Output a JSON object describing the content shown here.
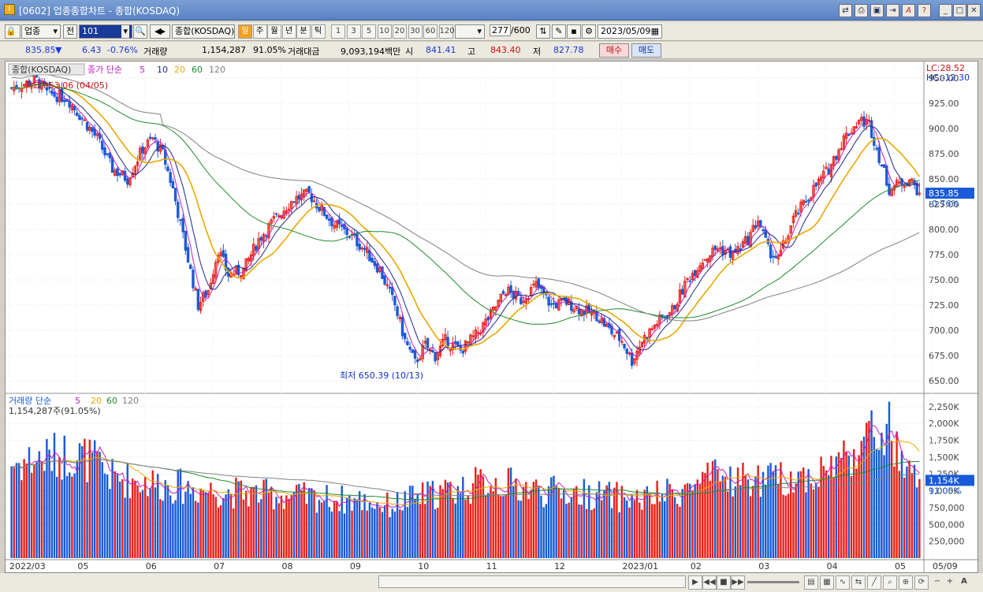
{
  "window": {
    "title": "[0602] 업종종합차트 - 종합(KOSDAQ)",
    "app_icon": "I"
  },
  "toolbar": {
    "market": "업종",
    "prev_label": "전",
    "code": "101",
    "name": "종합(KOSDAQ)",
    "periods": [
      "일",
      "주",
      "월",
      "년",
      "분",
      "틱"
    ],
    "active_period": "일",
    "minutes": [
      "1",
      "3",
      "5",
      "10",
      "20",
      "30",
      "60",
      "120"
    ],
    "count": "277",
    "count_max": "/600",
    "date": "2023/05/09"
  },
  "quote": {
    "price": "835.85",
    "arrow": "▼",
    "change": "6.43",
    "change_pct": "-0.76%",
    "volume_label": "거래량",
    "volume": "1,154,287",
    "volume_pct": "91.05%",
    "amount_label": "거래대금",
    "amount": "9,093,194백만",
    "open_label": "시",
    "open": "841.41",
    "high_label": "고",
    "high": "843.40",
    "low_label": "저",
    "low": "827.78",
    "buy_label": "매수",
    "sell_label": "매도"
  },
  "price_pane": {
    "legend_name": "종합(KOSDAQ)",
    "legend_ma_label": "종가 단순",
    "legend_ma": [
      "5",
      "10",
      "20",
      "60",
      "120"
    ],
    "lc": "LC:28.52",
    "hc": "HC:-12.30",
    "high_note": "최고 953.06 (04/05)",
    "low_note": "최저 650.39 (10/13)",
    "current_price": "835.85",
    "current_pct": "-0.76%",
    "y_ticks": [
      "950.00",
      "925.00",
      "900.00",
      "875.00",
      "850.00",
      "825.00",
      "800.00",
      "775.00",
      "750.00",
      "725.00",
      "700.00",
      "675.00",
      "650.00"
    ]
  },
  "volume_pane": {
    "legend_label": "거래량 단순",
    "legend_ma": [
      "5",
      "20",
      "60",
      "120"
    ],
    "sub_label": "1,154,287주(91.05%)",
    "current": "1,154K",
    "current_pct": "91.05%",
    "y_ticks": [
      "2,250K",
      "2,000K",
      "1,750K",
      "1,500K",
      "1,250K",
      "1,000K",
      "750,000",
      "500,000",
      "250,000"
    ]
  },
  "x_axis": [
    "2022/03",
    "05",
    "06",
    "07",
    "08",
    "09",
    "10",
    "11",
    "12",
    "2023/01",
    "02",
    "03",
    "04",
    "05",
    "05/09"
  ],
  "colors": {
    "up": "#e8201a",
    "down": "#1a5ad8",
    "ma5": "#c020c0",
    "ma10": "#1a2a8a",
    "ma20": "#e8a800",
    "ma60": "#208a30",
    "ma120": "#808080"
  },
  "chart_data": {
    "type": "candlestick",
    "ylim": [
      640,
      960
    ],
    "volume_ylim": [
      0,
      2400000
    ],
    "anchors": [
      [
        0,
        940
      ],
      [
        10,
        948
      ],
      [
        14,
        935
      ],
      [
        22,
        930
      ],
      [
        28,
        910
      ],
      [
        34,
        890
      ],
      [
        40,
        860
      ],
      [
        46,
        850
      ],
      [
        52,
        880
      ],
      [
        56,
        890
      ],
      [
        60,
        875
      ],
      [
        64,
        840
      ],
      [
        70,
        770
      ],
      [
        74,
        725
      ],
      [
        78,
        740
      ],
      [
        82,
        780
      ],
      [
        86,
        755
      ],
      [
        92,
        760
      ],
      [
        98,
        790
      ],
      [
        106,
        815
      ],
      [
        112,
        830
      ],
      [
        118,
        835
      ],
      [
        122,
        822
      ],
      [
        128,
        805
      ],
      [
        134,
        795
      ],
      [
        140,
        780
      ],
      [
        146,
        760
      ],
      [
        152,
        725
      ],
      [
        156,
        690
      ],
      [
        160,
        668
      ],
      [
        164,
        685
      ],
      [
        168,
        675
      ],
      [
        172,
        690
      ],
      [
        178,
        680
      ],
      [
        184,
        695
      ],
      [
        190,
        715
      ],
      [
        196,
        740
      ],
      [
        202,
        730
      ],
      [
        208,
        745
      ],
      [
        214,
        725
      ],
      [
        220,
        728
      ],
      [
        226,
        720
      ],
      [
        232,
        715
      ],
      [
        238,
        698
      ],
      [
        242,
        690
      ],
      [
        246,
        670
      ],
      [
        250,
        690
      ],
      [
        256,
        708
      ],
      [
        262,
        720
      ],
      [
        268,
        750
      ],
      [
        274,
        770
      ],
      [
        280,
        782
      ],
      [
        286,
        775
      ],
      [
        292,
        790
      ],
      [
        296,
        810
      ],
      [
        300,
        780
      ],
      [
        304,
        770
      ],
      [
        310,
        810
      ],
      [
        314,
        825
      ],
      [
        318,
        840
      ],
      [
        324,
        860
      ],
      [
        330,
        890
      ],
      [
        336,
        908
      ],
      [
        340,
        905
      ],
      [
        344,
        872
      ],
      [
        348,
        840
      ],
      [
        352,
        845
      ],
      [
        356,
        850
      ],
      [
        360,
        836
      ]
    ],
    "volume_anchors": [
      [
        0,
        1400000
      ],
      [
        14,
        1500000
      ],
      [
        24,
        1550000
      ],
      [
        32,
        1450000
      ],
      [
        40,
        1200000
      ],
      [
        60,
        1100000
      ],
      [
        80,
        1000000
      ],
      [
        100,
        950000
      ],
      [
        120,
        900000
      ],
      [
        140,
        850000
      ],
      [
        150,
        780000
      ],
      [
        160,
        900000
      ],
      [
        180,
        1050000
      ],
      [
        190,
        1150000
      ],
      [
        210,
        1000000
      ],
      [
        230,
        950000
      ],
      [
        250,
        870000
      ],
      [
        265,
        1000000
      ],
      [
        280,
        1200000
      ],
      [
        300,
        1150000
      ],
      [
        320,
        1250000
      ],
      [
        330,
        1500000
      ],
      [
        340,
        1800000
      ],
      [
        348,
        1900000
      ],
      [
        354,
        1250000
      ],
      [
        360,
        1154287
      ]
    ],
    "high": {
      "value": 953.06,
      "date": "04/05"
    },
    "low": {
      "value": 650.39,
      "date": "10/13"
    },
    "moving_averages": [
      5,
      10,
      20,
      60,
      120
    ]
  }
}
